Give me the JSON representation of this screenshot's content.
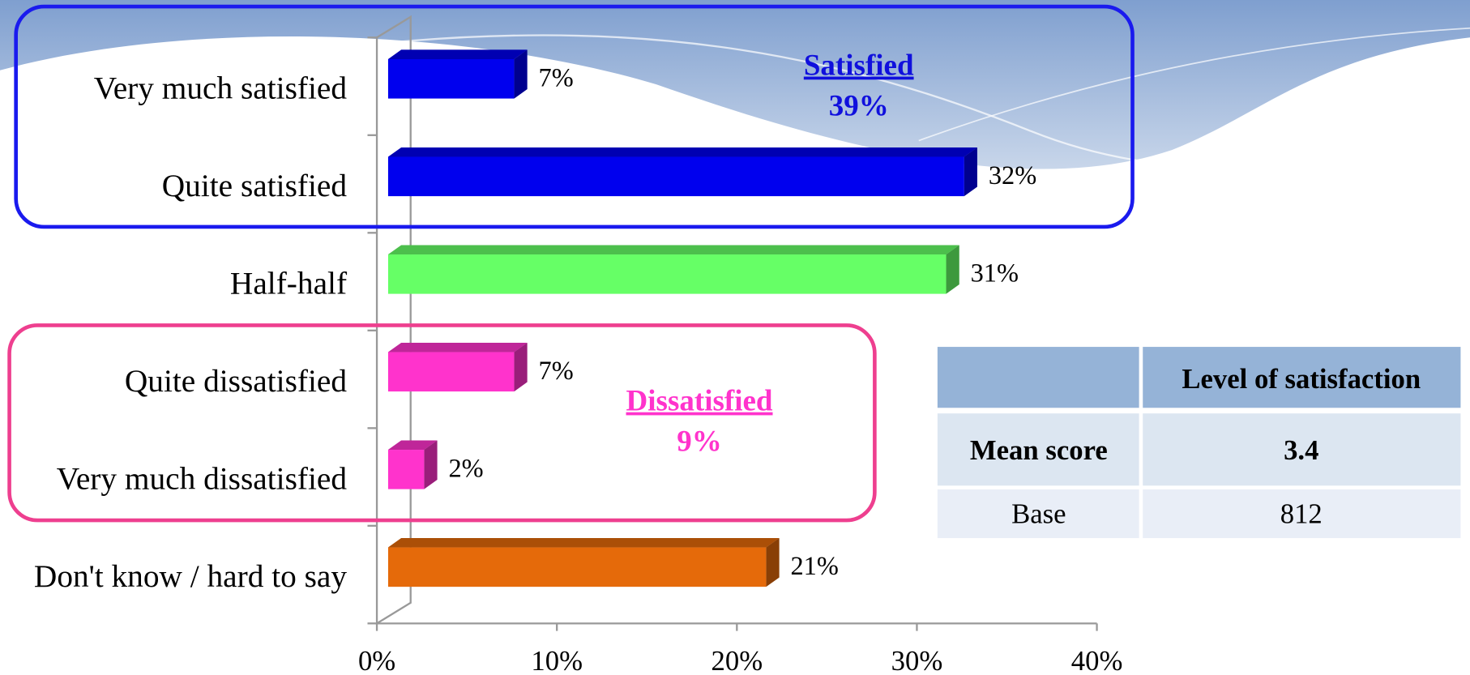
{
  "chart_data": {
    "type": "bar",
    "orientation": "horizontal",
    "categories": [
      "Very much satisfied",
      "Quite satisfied",
      "Half-half",
      "Quite dissatisfied",
      "Very much dissatisfied",
      "Don't know / hard to say"
    ],
    "values": [
      7,
      32,
      31,
      7,
      2,
      21
    ],
    "value_labels": [
      "7%",
      "32%",
      "31%",
      "7%",
      "2%",
      "21%"
    ],
    "colors": [
      "#0000ee",
      "#0000ee",
      "#66ff66",
      "#ff33cc",
      "#ff33cc",
      "#e56a0a"
    ],
    "xlim": [
      0,
      40
    ],
    "xticks": [
      {
        "value": 0,
        "label": "0%"
      },
      {
        "value": 10,
        "label": "10%"
      },
      {
        "value": 20,
        "label": "20%"
      },
      {
        "value": 30,
        "label": "30%"
      },
      {
        "value": 40,
        "label": "40%"
      }
    ],
    "annotations": [
      {
        "title": "Satisfied",
        "text": "39%",
        "color": "#1010dd"
      },
      {
        "title": "Dissatisfied",
        "text": "9%",
        "color": "#ff33cc"
      }
    ]
  },
  "table": {
    "header": [
      "Level of satisfaction"
    ],
    "rows": [
      [
        "Mean score",
        "3.4"
      ],
      [
        "Base",
        "812"
      ]
    ]
  }
}
